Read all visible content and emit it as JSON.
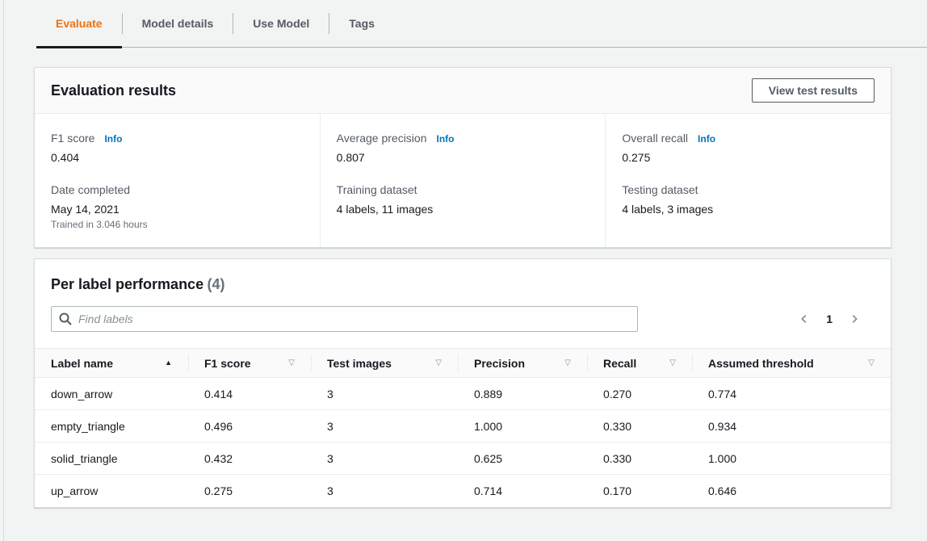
{
  "colors": {
    "accent_orange": "#ec7211",
    "link_blue": "#0073bb",
    "text_dark": "#16191f",
    "text_gray": "#545b64",
    "page_background": "#f2f3f3"
  },
  "tabs": [
    {
      "label": "Evaluate",
      "active": true
    },
    {
      "label": "Model details",
      "active": false
    },
    {
      "label": "Use Model",
      "active": false
    },
    {
      "label": "Tags",
      "active": false
    }
  ],
  "evaluation": {
    "title": "Evaluation results",
    "action_button": "View test results",
    "columns": [
      {
        "stats": [
          {
            "label": "F1 score",
            "info": "Info",
            "value": "0.404"
          },
          {
            "label": "Date completed",
            "value": "May 14, 2021",
            "note": "Trained in 3.046 hours"
          }
        ]
      },
      {
        "stats": [
          {
            "label": "Average precision",
            "info": "Info",
            "value": "0.807"
          },
          {
            "label": "Training dataset",
            "value": "4 labels, 11 images"
          }
        ]
      },
      {
        "stats": [
          {
            "label": "Overall recall",
            "info": "Info",
            "value": "0.275"
          },
          {
            "label": "Testing dataset",
            "value": "4 labels, 3 images"
          }
        ]
      }
    ]
  },
  "performance": {
    "title": "Per label performance",
    "count": "(4)",
    "search_placeholder": "Find labels",
    "pagination": {
      "current_page": "1"
    },
    "table": {
      "sort_asc_glyph": "▲",
      "sort_desc_glyph": "▽",
      "columns": [
        {
          "label": "Label name",
          "sort": "asc"
        },
        {
          "label": "F1 score",
          "sort": "none"
        },
        {
          "label": "Test images",
          "sort": "none"
        },
        {
          "label": "Precision",
          "sort": "none"
        },
        {
          "label": "Recall",
          "sort": "none"
        },
        {
          "label": "Assumed threshold",
          "sort": "none"
        }
      ],
      "rows": [
        [
          "down_arrow",
          "0.414",
          "3",
          "0.889",
          "0.270",
          "0.774"
        ],
        [
          "empty_triangle",
          "0.496",
          "3",
          "1.000",
          "0.330",
          "0.934"
        ],
        [
          "solid_triangle",
          "0.432",
          "3",
          "0.625",
          "0.330",
          "1.000"
        ],
        [
          "up_arrow",
          "0.275",
          "3",
          "0.714",
          "0.170",
          "0.646"
        ]
      ]
    }
  }
}
